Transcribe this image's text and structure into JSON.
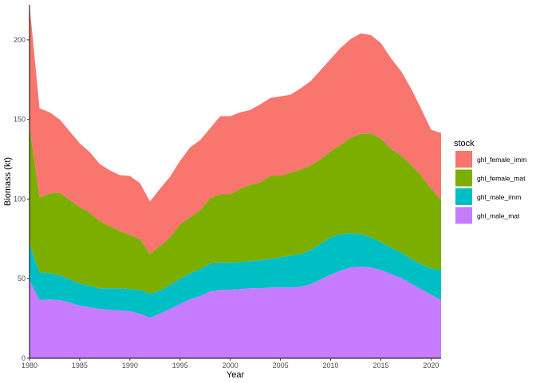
{
  "chart_data": {
    "type": "area",
    "stacked": true,
    "xlabel": "Year",
    "ylabel": "Biomass (kt)",
    "xlim": [
      1980,
      2021
    ],
    "ylim": [
      0,
      222
    ],
    "xticks": [
      1980,
      1985,
      1990,
      1995,
      2000,
      2005,
      2010,
      2015,
      2020
    ],
    "yticks": [
      0,
      50,
      100,
      150,
      200
    ],
    "grid": false,
    "legend": {
      "title": "stock",
      "placement": "right"
    },
    "x": [
      1980,
      1981,
      1982,
      1983,
      1984,
      1985,
      1986,
      1987,
      1988,
      1989,
      1990,
      1991,
      1992,
      1993,
      1994,
      1995,
      1996,
      1997,
      1998,
      1999,
      2000,
      2001,
      2002,
      2003,
      2004,
      2005,
      2006,
      2007,
      2008,
      2009,
      2010,
      2011,
      2012,
      2013,
      2014,
      2015,
      2016,
      2017,
      2018,
      2019,
      2020,
      2021
    ],
    "series": [
      {
        "name": "ghl_male_mat",
        "color": "#C77CFF",
        "values": [
          49,
          36.5,
          37,
          36.5,
          35,
          33,
          32,
          31,
          30.5,
          30,
          29.5,
          28,
          25.5,
          28,
          31,
          34,
          37,
          39,
          42,
          43,
          43,
          43.5,
          44,
          44,
          44.5,
          44.5,
          44.5,
          45,
          46.5,
          49.5,
          52.5,
          55,
          57,
          57.5,
          57,
          55.5,
          53,
          50.5,
          47,
          43.5,
          40,
          36.5
        ]
      },
      {
        "name": "ghl_male_imm",
        "color": "#00BFC4",
        "values": [
          23,
          17.5,
          16.5,
          15.5,
          14.5,
          14,
          13.5,
          13,
          13.5,
          14,
          14,
          15,
          15,
          14.5,
          15,
          16,
          16.5,
          17,
          17.5,
          17,
          17,
          17,
          17,
          17.5,
          18,
          19,
          20,
          20.5,
          21.5,
          22.5,
          23.5,
          23,
          21.5,
          20.5,
          19,
          17.5,
          16.5,
          16,
          15.5,
          15.5,
          16.5,
          19
        ]
      },
      {
        "name": "ghl_female_mat",
        "color": "#7CAE00",
        "values": [
          74,
          47,
          50,
          52,
          50,
          48,
          46,
          42,
          39,
          36,
          34,
          32,
          25,
          28,
          30,
          34,
          35,
          37,
          41,
          43,
          43,
          46,
          48,
          49,
          52,
          51,
          52,
          53,
          53,
          53,
          54,
          56,
          60,
          63,
          65,
          65,
          62,
          61,
          59,
          56,
          50,
          44
        ]
      },
      {
        "name": "ghl_female_imm",
        "color": "#F8766D",
        "values": [
          76,
          56,
          51,
          46,
          43,
          40,
          38,
          36,
          35,
          35,
          37,
          35,
          33,
          36,
          38,
          40,
          44,
          44,
          44,
          49,
          49,
          48,
          47,
          49,
          49,
          50,
          49,
          51,
          53,
          56,
          58,
          61,
          62,
          63,
          62,
          60,
          57,
          53,
          48,
          42,
          37,
          42
        ]
      }
    ]
  }
}
